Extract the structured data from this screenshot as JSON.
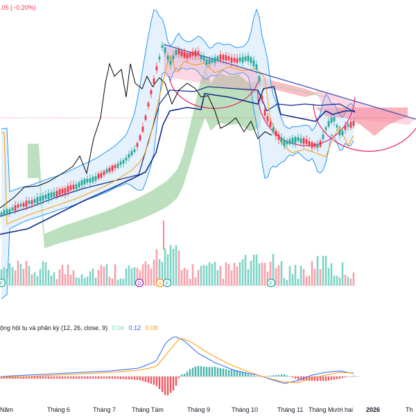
{
  "header": {
    "change_text": ".05 (−0.20%)"
  },
  "macd": {
    "label": "ộng hội tụ và phân kỳ (12, 26, close, 9)",
    "v1": "0.04",
    "v2": "0.12",
    "v3": "0.08",
    "colors": {
      "v1": "#7fd4c4",
      "v2": "#2962ff",
      "v3": "#ff9800"
    }
  },
  "event_markers": [
    "F",
    "D",
    "S",
    "F",
    "F"
  ],
  "chart_data": {
    "type": "candlestick",
    "x_labels": [
      "Năm",
      "Tháng 6",
      "Tháng 7",
      "Tháng Tám",
      "Tháng 9",
      "Tháng 10",
      "Tháng 11",
      "Tháng Mười hai",
      "2026",
      "Th"
    ],
    "bold_labels": [
      "2026"
    ],
    "grid": false,
    "colors": {
      "up": "#26a69a",
      "down": "#f23645",
      "upvol": "#7ed3c6",
      "downvol": "#f7a1aa",
      "macd_line": "#2962ff",
      "signal_line": "#ff9800"
    },
    "note": "relative price index 0–100, last visible bar ≈ 64",
    "last_value": 64
  }
}
